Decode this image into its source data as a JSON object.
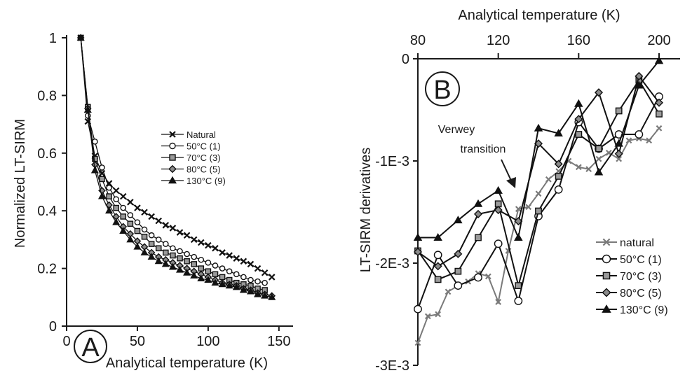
{
  "colors": {
    "axis": "#1a1a1a",
    "natural": "#7a7a7a",
    "heated": "#111111"
  },
  "chart_data": [
    {
      "type": "line",
      "panel_label": "A",
      "xlabel": "Analytical temperature (K)",
      "ylabel": "Normalized LT-SIRM",
      "xlim": [
        0,
        160
      ],
      "ylim": [
        0,
        1
      ],
      "xticks": [
        "0",
        "50",
        "100",
        "150"
      ],
      "yticks": [
        "0",
        "0.2",
        "0.4",
        "0.6",
        "0.8",
        "1"
      ],
      "grid": false,
      "legend_position": "center-right",
      "series": [
        {
          "name": "Natural",
          "marker": "x",
          "x": [
            10,
            15,
            20,
            25,
            30,
            35,
            40,
            45,
            50,
            55,
            60,
            65,
            70,
            75,
            80,
            85,
            90,
            95,
            100,
            105,
            110,
            115,
            120,
            125,
            130,
            135,
            140,
            145
          ],
          "y": [
            1,
            0.71,
            0.59,
            0.53,
            0.495,
            0.47,
            0.45,
            0.43,
            0.41,
            0.395,
            0.38,
            0.365,
            0.35,
            0.34,
            0.325,
            0.315,
            0.3,
            0.29,
            0.28,
            0.27,
            0.255,
            0.245,
            0.235,
            0.225,
            0.215,
            0.2,
            0.185,
            0.17
          ]
        },
        {
          "name": "50°C (1)",
          "marker": "circle",
          "x": [
            10,
            15,
            20,
            25,
            30,
            35,
            40,
            45,
            50,
            55,
            60,
            65,
            70,
            75,
            80,
            85,
            90,
            95,
            100,
            105,
            110,
            115,
            120,
            125,
            130,
            135,
            140
          ],
          "y": [
            1,
            0.73,
            0.64,
            0.55,
            0.48,
            0.44,
            0.41,
            0.385,
            0.36,
            0.335,
            0.315,
            0.3,
            0.285,
            0.27,
            0.26,
            0.25,
            0.24,
            0.23,
            0.22,
            0.21,
            0.2,
            0.19,
            0.18,
            0.17,
            0.16,
            0.155,
            0.15
          ]
        },
        {
          "name": "70°C (3)",
          "marker": "square",
          "x": [
            10,
            15,
            20,
            25,
            30,
            35,
            40,
            45,
            50,
            55,
            60,
            65,
            70,
            75,
            80,
            85,
            90,
            95,
            100,
            105,
            110,
            115,
            120,
            125,
            130,
            135,
            140
          ],
          "y": [
            1,
            0.76,
            0.58,
            0.51,
            0.45,
            0.41,
            0.38,
            0.355,
            0.33,
            0.31,
            0.285,
            0.27,
            0.255,
            0.245,
            0.235,
            0.225,
            0.215,
            0.2,
            0.19,
            0.18,
            0.17,
            0.16,
            0.15,
            0.145,
            0.14,
            0.13,
            0.125
          ]
        },
        {
          "name": "80°C (5)",
          "marker": "diamond",
          "x": [
            10,
            15,
            20,
            25,
            30,
            35,
            40,
            45,
            50,
            55,
            60,
            65,
            70,
            75,
            80,
            85,
            90,
            95,
            100,
            105,
            110,
            115,
            120,
            125,
            130,
            135,
            140,
            145
          ],
          "y": [
            1,
            0.755,
            0.56,
            0.47,
            0.42,
            0.38,
            0.345,
            0.32,
            0.295,
            0.275,
            0.255,
            0.24,
            0.23,
            0.22,
            0.21,
            0.2,
            0.19,
            0.18,
            0.17,
            0.16,
            0.15,
            0.145,
            0.14,
            0.13,
            0.125,
            0.115,
            0.11,
            0.105
          ]
        },
        {
          "name": "130°C (9)",
          "marker": "triangle",
          "x": [
            10,
            15,
            20,
            25,
            30,
            35,
            40,
            45,
            50,
            55,
            60,
            65,
            70,
            75,
            80,
            85,
            90,
            95,
            100,
            105,
            110,
            115,
            120,
            125,
            130,
            135,
            140,
            145
          ],
          "y": [
            1,
            0.75,
            0.54,
            0.45,
            0.4,
            0.36,
            0.33,
            0.3,
            0.275,
            0.255,
            0.24,
            0.225,
            0.215,
            0.205,
            0.195,
            0.185,
            0.175,
            0.165,
            0.16,
            0.15,
            0.145,
            0.14,
            0.135,
            0.125,
            0.12,
            0.11,
            0.105,
            0.1
          ]
        }
      ]
    },
    {
      "type": "line",
      "panel_label": "B",
      "xlabel": "Analytical temperature (K)",
      "ylabel": "LT-SIRM derivatives",
      "xlim": [
        80,
        200
      ],
      "ylim": [
        -0.003,
        0
      ],
      "xticks": [
        "80",
        "120",
        "160",
        "200"
      ],
      "yticks": [
        "0",
        "-1E-3",
        "-2E-3",
        "-3E-3"
      ],
      "grid": false,
      "legend_position": "bottom-right",
      "annotation": {
        "lines": [
          "Verwey",
          "transition"
        ],
        "x": 125,
        "y": -0.00128
      },
      "series": [
        {
          "name": "natural",
          "marker": "x",
          "x": [
            80,
            85,
            90,
            95,
            100,
            105,
            110,
            115,
            120,
            125,
            130,
            135,
            140,
            145,
            150,
            155,
            160,
            165,
            170,
            175,
            180,
            185,
            190,
            195,
            200
          ],
          "y": [
            -0.00278,
            -0.00252,
            -0.0025,
            -0.00228,
            -0.00222,
            -0.00218,
            -0.0021,
            -0.00213,
            -0.00238,
            -0.00188,
            -0.00147,
            -0.00145,
            -0.00132,
            -0.00118,
            -0.0011,
            -0.001,
            -0.00106,
            -0.00108,
            -0.00098,
            -0.00092,
            -0.00098,
            -0.0008,
            -0.00078,
            -0.0008,
            -0.00068
          ]
        },
        {
          "name": "50°C (1)",
          "marker": "circle",
          "x": [
            80,
            90,
            100,
            110,
            120,
            130,
            140,
            150,
            160,
            170,
            180,
            190,
            200
          ],
          "y": [
            -0.00245,
            -0.00192,
            -0.00222,
            -0.00214,
            -0.00181,
            -0.00237,
            -0.00154,
            -0.00128,
            -0.00062,
            -0.00088,
            -0.00074,
            -0.00074,
            -0.00037
          ]
        },
        {
          "name": "70°C (3)",
          "marker": "square",
          "x": [
            80,
            90,
            100,
            110,
            120,
            130,
            140,
            150,
            160,
            170,
            180,
            190,
            200
          ],
          "y": [
            -0.00188,
            -0.00216,
            -0.00208,
            -0.00175,
            -0.00142,
            -0.00222,
            -0.00149,
            -0.00115,
            -0.00074,
            -0.00088,
            -0.00051,
            -0.00021,
            -0.00054
          ]
        },
        {
          "name": "80°C (5)",
          "marker": "diamond",
          "x": [
            80,
            90,
            100,
            110,
            120,
            130,
            140,
            150,
            160,
            170,
            180,
            190,
            200
          ],
          "y": [
            -0.00189,
            -0.00203,
            -0.00191,
            -0.00152,
            -0.00148,
            -0.00159,
            -0.00083,
            -0.00103,
            -0.00059,
            -0.00033,
            -0.00093,
            -0.00017,
            -0.00043
          ]
        },
        {
          "name": "130°C (9)",
          "marker": "triangle",
          "x": [
            80,
            90,
            100,
            110,
            120,
            130,
            140,
            150,
            160,
            170,
            180,
            190,
            200
          ],
          "y": [
            -0.00175,
            -0.00175,
            -0.00158,
            -0.00142,
            -0.00129,
            -0.00175,
            -0.00068,
            -0.00073,
            -0.00044,
            -0.00111,
            -0.00083,
            -0.00026,
            -2e-05
          ]
        }
      ]
    }
  ]
}
